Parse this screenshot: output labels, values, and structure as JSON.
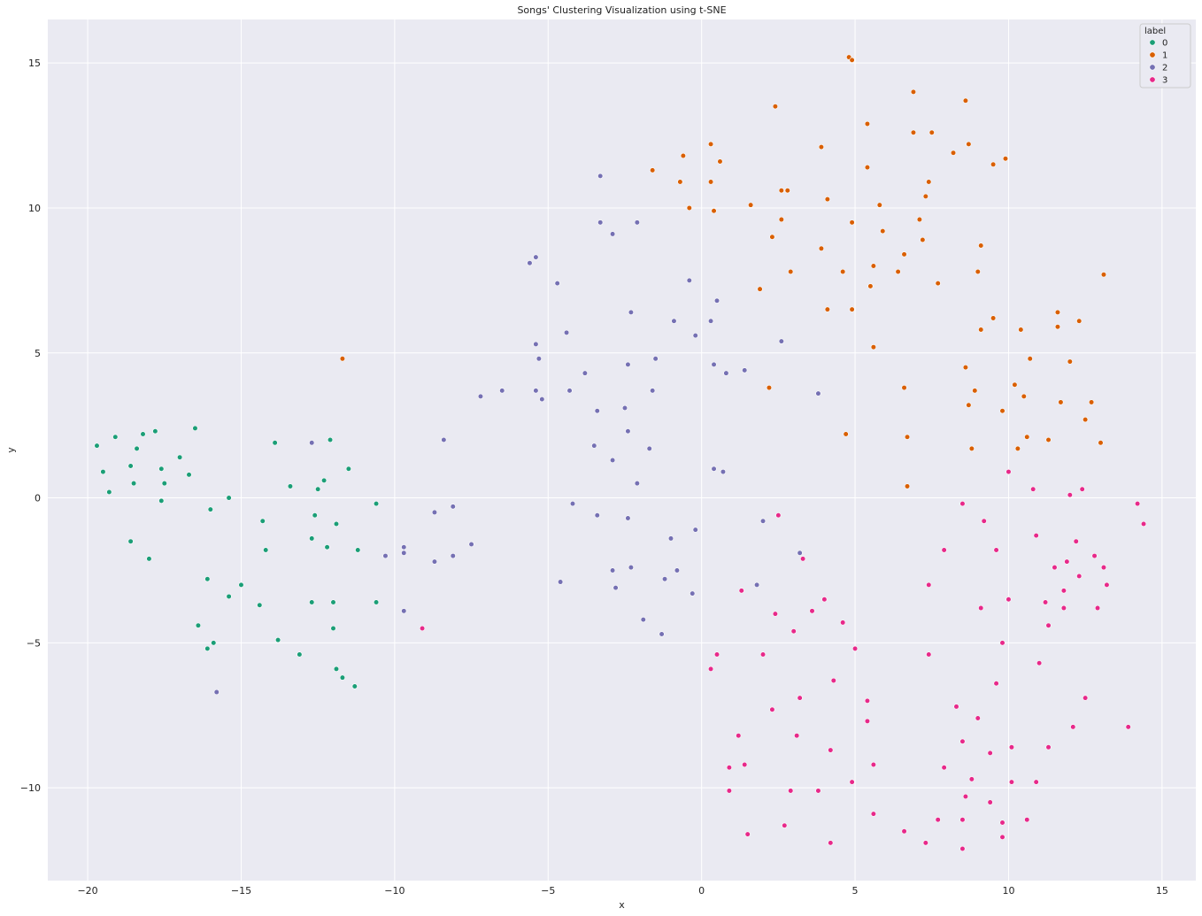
{
  "chart_data": {
    "type": "scatter",
    "title": "Songs' Clustering Visualization using t-SNE",
    "xlabel": "x",
    "ylabel": "y",
    "xlim": [
      -21.3,
      16.1
    ],
    "ylim": [
      -13.2,
      16.5
    ],
    "xticks": [
      -20,
      -15,
      -10,
      -5,
      0,
      5,
      10,
      15
    ],
    "yticks": [
      -10,
      -5,
      0,
      5,
      10,
      15
    ],
    "grid": true,
    "legend": {
      "title": "label",
      "placement": "top-right"
    },
    "series": [
      {
        "name": "0",
        "color": "#1b9e77",
        "points": [
          [
            -19.7,
            1.8
          ],
          [
            -19.5,
            0.9
          ],
          [
            -19.3,
            0.2
          ],
          [
            -19.1,
            2.1
          ],
          [
            -18.6,
            1.1
          ],
          [
            -18.5,
            0.5
          ],
          [
            -18.4,
            1.7
          ],
          [
            -18.2,
            2.2
          ],
          [
            -17.8,
            2.3
          ],
          [
            -17.6,
            1.0
          ],
          [
            -17.5,
            0.5
          ],
          [
            -17.0,
            1.4
          ],
          [
            -16.7,
            0.8
          ],
          [
            -16.5,
            2.4
          ],
          [
            -17.6,
            -0.1
          ],
          [
            -18.6,
            -1.5
          ],
          [
            -18.0,
            -2.1
          ],
          [
            -16.0,
            -0.4
          ],
          [
            -15.4,
            0.0
          ],
          [
            -16.1,
            -2.8
          ],
          [
            -16.4,
            -4.4
          ],
          [
            -16.1,
            -5.2
          ],
          [
            -15.9,
            -5.0
          ],
          [
            -15.0,
            -3.0
          ],
          [
            -15.4,
            -3.4
          ],
          [
            -14.4,
            -3.7
          ],
          [
            -14.3,
            -0.8
          ],
          [
            -14.2,
            -1.8
          ],
          [
            -13.9,
            1.9
          ],
          [
            -13.4,
            0.4
          ],
          [
            -13.8,
            -4.9
          ],
          [
            -13.1,
            -5.4
          ],
          [
            -12.6,
            -0.6
          ],
          [
            -12.5,
            0.3
          ],
          [
            -12.3,
            0.6
          ],
          [
            -12.1,
            2.0
          ],
          [
            -11.5,
            1.0
          ],
          [
            -12.7,
            -1.4
          ],
          [
            -12.2,
            -1.7
          ],
          [
            -11.9,
            -0.9
          ],
          [
            -12.7,
            -3.6
          ],
          [
            -12.0,
            -3.6
          ],
          [
            -12.0,
            -4.5
          ],
          [
            -11.9,
            -5.9
          ],
          [
            -11.7,
            -6.2
          ],
          [
            -11.3,
            -6.5
          ],
          [
            -11.2,
            -1.8
          ],
          [
            -10.6,
            -0.2
          ],
          [
            -10.6,
            -3.6
          ]
        ]
      },
      {
        "name": "1",
        "color": "#d95f02",
        "points": [
          [
            -11.7,
            4.8
          ],
          [
            -1.6,
            11.3
          ],
          [
            -0.7,
            10.9
          ],
          [
            -0.6,
            11.8
          ],
          [
            -0.4,
            10.0
          ],
          [
            0.3,
            12.2
          ],
          [
            0.3,
            10.9
          ],
          [
            0.4,
            9.9
          ],
          [
            0.6,
            11.6
          ],
          [
            1.6,
            10.1
          ],
          [
            2.4,
            13.5
          ],
          [
            2.3,
            9.0
          ],
          [
            2.6,
            9.6
          ],
          [
            2.6,
            10.6
          ],
          [
            2.8,
            10.6
          ],
          [
            1.9,
            7.2
          ],
          [
            2.9,
            7.8
          ],
          [
            2.2,
            3.8
          ],
          [
            3.9,
            8.6
          ],
          [
            3.9,
            12.1
          ],
          [
            4.1,
            10.3
          ],
          [
            4.1,
            6.5
          ],
          [
            4.6,
            7.8
          ],
          [
            4.8,
            15.2
          ],
          [
            4.9,
            15.1
          ],
          [
            4.9,
            9.5
          ],
          [
            4.9,
            6.5
          ],
          [
            4.7,
            2.2
          ],
          [
            5.4,
            12.9
          ],
          [
            5.4,
            11.4
          ],
          [
            5.5,
            7.3
          ],
          [
            5.6,
            8.0
          ],
          [
            5.6,
            5.2
          ],
          [
            5.8,
            10.1
          ],
          [
            5.9,
            9.2
          ],
          [
            6.4,
            7.8
          ],
          [
            6.6,
            8.4
          ],
          [
            6.6,
            3.8
          ],
          [
            6.7,
            2.1
          ],
          [
            6.7,
            0.4
          ],
          [
            6.9,
            14.0
          ],
          [
            6.9,
            12.6
          ],
          [
            7.1,
            9.6
          ],
          [
            7.2,
            8.9
          ],
          [
            7.3,
            10.4
          ],
          [
            7.4,
            10.9
          ],
          [
            7.5,
            12.6
          ],
          [
            7.7,
            7.4
          ],
          [
            8.2,
            11.9
          ],
          [
            8.6,
            13.7
          ],
          [
            8.7,
            12.2
          ],
          [
            8.6,
            4.5
          ],
          [
            8.7,
            3.2
          ],
          [
            8.8,
            1.7
          ],
          [
            8.9,
            3.7
          ],
          [
            9.0,
            7.8
          ],
          [
            9.1,
            5.8
          ],
          [
            9.1,
            8.7
          ],
          [
            9.5,
            11.5
          ],
          [
            9.5,
            6.2
          ],
          [
            9.8,
            3.0
          ],
          [
            9.9,
            11.7
          ],
          [
            10.2,
            3.9
          ],
          [
            10.3,
            1.7
          ],
          [
            10.4,
            5.8
          ],
          [
            10.5,
            3.5
          ],
          [
            10.6,
            2.1
          ],
          [
            10.7,
            4.8
          ],
          [
            11.3,
            2.0
          ],
          [
            11.6,
            6.4
          ],
          [
            11.6,
            5.9
          ],
          [
            11.7,
            3.3
          ],
          [
            12.0,
            4.7
          ],
          [
            12.3,
            6.1
          ],
          [
            12.5,
            2.7
          ],
          [
            12.7,
            3.3
          ],
          [
            13.0,
            1.9
          ],
          [
            13.1,
            7.7
          ]
        ]
      },
      {
        "name": "2",
        "color": "#7570b3",
        "points": [
          [
            -15.8,
            -6.7
          ],
          [
            -12.7,
            1.9
          ],
          [
            -10.3,
            -2.0
          ],
          [
            -9.7,
            -1.7
          ],
          [
            -9.7,
            -1.9
          ],
          [
            -9.7,
            -3.9
          ],
          [
            -8.7,
            -0.5
          ],
          [
            -8.7,
            -2.2
          ],
          [
            -8.4,
            2.0
          ],
          [
            -8.1,
            -0.3
          ],
          [
            -8.1,
            -2.0
          ],
          [
            -7.5,
            -1.6
          ],
          [
            -7.2,
            3.5
          ],
          [
            -6.5,
            3.7
          ],
          [
            -5.6,
            8.1
          ],
          [
            -5.4,
            8.3
          ],
          [
            -5.4,
            5.3
          ],
          [
            -5.3,
            4.8
          ],
          [
            -5.4,
            3.7
          ],
          [
            -5.2,
            3.4
          ],
          [
            -4.7,
            7.4
          ],
          [
            -4.4,
            5.7
          ],
          [
            -4.3,
            3.7
          ],
          [
            -4.2,
            -0.2
          ],
          [
            -4.6,
            -2.9
          ],
          [
            -3.3,
            11.1
          ],
          [
            -3.3,
            9.5
          ],
          [
            -2.9,
            9.1
          ],
          [
            -2.1,
            9.5
          ],
          [
            -3.8,
            4.3
          ],
          [
            -3.4,
            3.0
          ],
          [
            -3.5,
            1.8
          ],
          [
            -3.4,
            -0.6
          ],
          [
            -2.9,
            1.3
          ],
          [
            -2.4,
            4.6
          ],
          [
            -2.5,
            3.1
          ],
          [
            -2.4,
            2.3
          ],
          [
            -2.3,
            6.4
          ],
          [
            -2.4,
            -0.7
          ],
          [
            -2.9,
            -2.5
          ],
          [
            -2.8,
            -3.1
          ],
          [
            -2.3,
            -2.4
          ],
          [
            -1.7,
            1.7
          ],
          [
            -2.1,
            0.5
          ],
          [
            -1.5,
            4.8
          ],
          [
            -1.6,
            3.7
          ],
          [
            -0.9,
            6.1
          ],
          [
            -0.4,
            7.5
          ],
          [
            -0.2,
            5.6
          ],
          [
            0.3,
            6.1
          ],
          [
            0.5,
            6.8
          ],
          [
            0.4,
            4.6
          ],
          [
            0.8,
            4.3
          ],
          [
            1.4,
            4.4
          ],
          [
            0.4,
            1.0
          ],
          [
            0.7,
            0.9
          ],
          [
            -1.0,
            -1.4
          ],
          [
            -0.2,
            -1.1
          ],
          [
            -1.2,
            -2.8
          ],
          [
            -0.8,
            -2.5
          ],
          [
            -0.3,
            -3.3
          ],
          [
            -1.9,
            -4.2
          ],
          [
            -1.3,
            -4.7
          ],
          [
            2.6,
            5.4
          ],
          [
            3.8,
            3.6
          ],
          [
            2.0,
            -0.8
          ],
          [
            1.8,
            -3.0
          ],
          [
            3.2,
            -1.9
          ]
        ]
      },
      {
        "name": "3",
        "color": "#e7298a",
        "points": [
          [
            -9.1,
            -4.5
          ],
          [
            0.3,
            -5.9
          ],
          [
            0.5,
            -5.4
          ],
          [
            1.3,
            -3.2
          ],
          [
            1.2,
            -8.2
          ],
          [
            0.9,
            -9.3
          ],
          [
            0.9,
            -10.1
          ],
          [
            1.4,
            -9.2
          ],
          [
            1.5,
            -11.6
          ],
          [
            2.0,
            -5.4
          ],
          [
            2.3,
            -7.3
          ],
          [
            2.4,
            -4.0
          ],
          [
            2.5,
            -0.6
          ],
          [
            2.7,
            -11.3
          ],
          [
            2.9,
            -10.1
          ],
          [
            3.0,
            -4.6
          ],
          [
            3.1,
            -8.2
          ],
          [
            3.2,
            -6.9
          ],
          [
            3.3,
            -2.1
          ],
          [
            3.6,
            -3.9
          ],
          [
            3.8,
            -10.1
          ],
          [
            4.0,
            -3.5
          ],
          [
            4.2,
            -8.7
          ],
          [
            4.3,
            -6.3
          ],
          [
            4.2,
            -11.9
          ],
          [
            4.6,
            -4.3
          ],
          [
            4.9,
            -9.8
          ],
          [
            5.0,
            -5.2
          ],
          [
            5.4,
            -7.0
          ],
          [
            5.4,
            -7.7
          ],
          [
            5.6,
            -9.2
          ],
          [
            5.6,
            -10.9
          ],
          [
            6.6,
            -11.5
          ],
          [
            7.3,
            -11.9
          ],
          [
            7.4,
            -3.0
          ],
          [
            7.4,
            -5.4
          ],
          [
            7.7,
            -11.1
          ],
          [
            7.9,
            -1.8
          ],
          [
            7.9,
            -9.3
          ],
          [
            8.3,
            -7.2
          ],
          [
            8.5,
            -0.2
          ],
          [
            8.5,
            -8.4
          ],
          [
            8.6,
            -10.3
          ],
          [
            8.5,
            -11.1
          ],
          [
            8.5,
            -12.1
          ],
          [
            8.8,
            -9.7
          ],
          [
            9.0,
            -7.6
          ],
          [
            9.1,
            -3.8
          ],
          [
            9.2,
            -0.8
          ],
          [
            9.4,
            -8.8
          ],
          [
            9.4,
            -10.5
          ],
          [
            9.6,
            -6.4
          ],
          [
            9.6,
            -1.8
          ],
          [
            9.8,
            -5.0
          ],
          [
            9.8,
            -11.2
          ],
          [
            9.8,
            -11.7
          ],
          [
            10.0,
            0.9
          ],
          [
            10.0,
            -3.5
          ],
          [
            10.1,
            -8.6
          ],
          [
            10.1,
            -9.8
          ],
          [
            10.6,
            -11.1
          ],
          [
            10.8,
            0.3
          ],
          [
            10.9,
            -1.3
          ],
          [
            10.9,
            -9.8
          ],
          [
            11.0,
            -5.7
          ],
          [
            11.2,
            -3.6
          ],
          [
            11.3,
            -4.4
          ],
          [
            11.3,
            -8.6
          ],
          [
            11.5,
            -2.4
          ],
          [
            11.8,
            -3.2
          ],
          [
            11.8,
            -3.8
          ],
          [
            11.9,
            -2.2
          ],
          [
            12.0,
            0.1
          ],
          [
            12.2,
            -1.5
          ],
          [
            12.1,
            -7.9
          ],
          [
            12.3,
            -2.7
          ],
          [
            12.4,
            0.3
          ],
          [
            12.5,
            -6.9
          ],
          [
            12.8,
            -2.0
          ],
          [
            12.9,
            -3.8
          ],
          [
            13.1,
            -2.4
          ],
          [
            13.2,
            -3.0
          ],
          [
            13.9,
            -7.9
          ],
          [
            14.2,
            -0.2
          ],
          [
            14.4,
            -0.9
          ]
        ]
      }
    ]
  }
}
